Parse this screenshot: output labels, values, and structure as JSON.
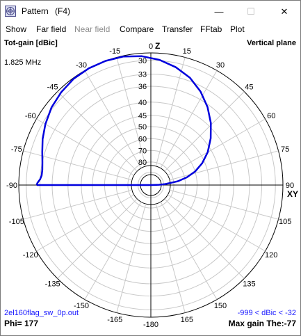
{
  "window": {
    "title": "Pattern",
    "shortcut": "(F4)",
    "min_glyph": "—",
    "max_glyph": "☐",
    "close_glyph": "✕",
    "icon": "pattern-app-icon"
  },
  "menu": [
    "Show",
    "Far field",
    "Near field",
    "Compare",
    "Transfer",
    "FFtab",
    "Plot"
  ],
  "menu_disabled": [
    false,
    false,
    true,
    false,
    false,
    false,
    false
  ],
  "plot": {
    "gain_label": "Tot-gain [dBic]",
    "plane_label": "Vertical plane",
    "frequency": "1.825 MHz",
    "z_axis_label": "Z",
    "xy_axis_label": "XY",
    "file_name": "2el160flag_sw_0p.out",
    "range_text": "-999 < dBic < -32",
    "phi_text": "Phi= 177",
    "max_gain_text": "Max gain The:-77",
    "trace_color": "#0000dd",
    "label_blue": "#1a1aff"
  },
  "chart_data": {
    "type": "polar",
    "title": "Vertical plane",
    "radial_label": "Tot-gain [dBic]",
    "angular_tick_labels": [
      "0",
      "15",
      "30",
      "45",
      "60",
      "75",
      "90",
      "105",
      "120",
      "135",
      "150",
      "165",
      "-180",
      "-165",
      "-150",
      "-135",
      "-120",
      "-105",
      "-90",
      "-75",
      "-60",
      "-45",
      "-30",
      "-15"
    ],
    "radial_tick_labels": [
      "30",
      "33",
      "36",
      "40",
      "45",
      "50",
      "60",
      "70",
      "80"
    ],
    "series": [
      {
        "theta_deg": [
          -90,
          -89,
          -88,
          -87,
          -85,
          -82,
          -78,
          -73,
          -67,
          -60,
          -52,
          -44,
          -36,
          -28,
          -20,
          -12,
          -4,
          4,
          12,
          20,
          28,
          36,
          44,
          52,
          60,
          67,
          73,
          78,
          82,
          86,
          88,
          89,
          90
        ],
        "gain_dbic": [
          -34.5,
          -34.6,
          -34.8,
          -35.0,
          -35.2,
          -35.2,
          -35.0,
          -34.6,
          -34.0,
          -33.4,
          -32.8,
          -32.4,
          -32.1,
          -32.0,
          -32.0,
          -32.1,
          -32.4,
          -32.9,
          -33.6,
          -34.5,
          -35.8,
          -37.4,
          -39.3,
          -41.5,
          -44.0,
          -46.8,
          -50.0,
          -54.0,
          -59.0,
          -70.0,
          -80.0,
          -999,
          -999
        ]
      }
    ]
  }
}
